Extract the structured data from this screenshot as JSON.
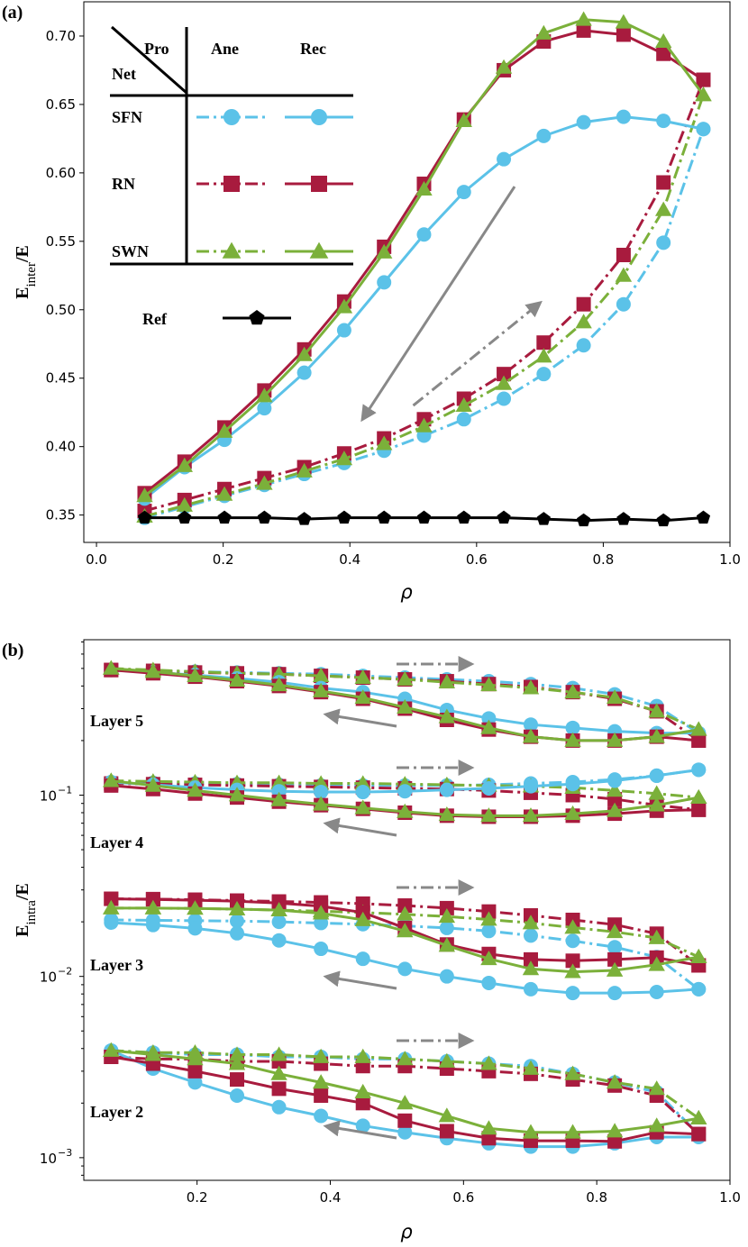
{
  "colors": {
    "SFN": "#5bc2e8",
    "RN": "#a81b3e",
    "SWN": "#7bb03a",
    "Ref": "#000000",
    "arrow": "#888888"
  },
  "chart_data": [
    {
      "type": "line",
      "panel_label": "(a)",
      "xlabel": "ρ",
      "ylabel_main": "E",
      "ylabel_sub": "inter",
      "ylabel_tail": "/E",
      "xlim": [
        -0.02,
        1.0
      ],
      "ylim": [
        0.33,
        0.725
      ],
      "xticks": [
        0.0,
        0.2,
        0.4,
        0.6,
        0.8,
        1.0
      ],
      "xtick_labels": [
        "0.0",
        "0.2",
        "0.4",
        "0.6",
        "0.8",
        "1.0"
      ],
      "yticks": [
        0.35,
        0.4,
        0.45,
        0.5,
        0.55,
        0.6,
        0.65,
        0.7
      ],
      "ytick_labels": [
        "0.35",
        "0.40",
        "0.45",
        "0.50",
        "0.55",
        "0.60",
        "0.65",
        "0.70"
      ],
      "x": [
        0.076,
        0.139,
        0.202,
        0.265,
        0.328,
        0.391,
        0.454,
        0.517,
        0.58,
        0.643,
        0.706,
        0.769,
        0.832,
        0.895,
        0.958
      ],
      "legend": {
        "corner_top": "Pro",
        "corner_left": "Net",
        "col_ane": "Ane",
        "col_rec": "Rec",
        "row_sfn": "SFN",
        "row_rn": "RN",
        "row_swn": "SWN",
        "row_ref": "Ref"
      },
      "series": [
        {
          "net": "SFN",
          "process": "Ane",
          "marker": "circle",
          "values": [
            0.348,
            0.356,
            0.364,
            0.372,
            0.38,
            0.388,
            0.397,
            0.408,
            0.42,
            0.435,
            0.453,
            0.474,
            0.504,
            0.549,
            0.632
          ]
        },
        {
          "net": "RN",
          "process": "Ane",
          "marker": "square",
          "values": [
            0.353,
            0.361,
            0.369,
            0.377,
            0.385,
            0.395,
            0.406,
            0.42,
            0.435,
            0.453,
            0.476,
            0.504,
            0.54,
            0.593,
            0.668
          ]
        },
        {
          "net": "SWN",
          "process": "Ane",
          "marker": "triangle",
          "values": [
            0.349,
            0.357,
            0.365,
            0.373,
            0.382,
            0.391,
            0.402,
            0.415,
            0.43,
            0.446,
            0.466,
            0.491,
            0.525,
            0.573,
            0.657
          ]
        },
        {
          "net": "SFN",
          "process": "Rec",
          "marker": "circle",
          "values": [
            0.362,
            0.385,
            0.405,
            0.428,
            0.454,
            0.485,
            0.52,
            0.555,
            0.586,
            0.61,
            0.627,
            0.637,
            0.641,
            0.638,
            0.632
          ]
        },
        {
          "net": "RN",
          "process": "Rec",
          "marker": "square",
          "values": [
            0.366,
            0.389,
            0.414,
            0.441,
            0.471,
            0.506,
            0.546,
            0.592,
            0.639,
            0.675,
            0.696,
            0.704,
            0.701,
            0.687,
            0.668
          ]
        },
        {
          "net": "SWN",
          "process": "Rec",
          "marker": "triangle",
          "values": [
            0.364,
            0.386,
            0.411,
            0.437,
            0.467,
            0.502,
            0.542,
            0.588,
            0.638,
            0.677,
            0.702,
            0.712,
            0.71,
            0.696,
            0.657
          ]
        },
        {
          "net": "Ref",
          "process": "",
          "marker": "pentagon",
          "values": [
            0.348,
            0.348,
            0.348,
            0.348,
            0.347,
            0.348,
            0.348,
            0.348,
            0.348,
            0.348,
            0.347,
            0.346,
            0.347,
            0.346,
            0.348
          ]
        }
      ],
      "arrows": [
        {
          "style": "solid",
          "from": [
            0.66,
            0.59
          ],
          "to": [
            0.42,
            0.42
          ]
        },
        {
          "style": "dashdot",
          "from": [
            0.5,
            0.43
          ],
          "to": [
            0.7,
            0.505
          ]
        }
      ]
    },
    {
      "type": "line",
      "panel_label": "(b)",
      "xlabel": "ρ",
      "ylabel_main": "E",
      "ylabel_sub": "intra",
      "ylabel_tail": "/E",
      "yscale": "log",
      "xlim": [
        0.03,
        1.0
      ],
      "ylim": [
        0.00075,
        0.72
      ],
      "xticks": [
        0.2,
        0.4,
        0.6,
        0.8,
        1.0
      ],
      "xtick_labels": [
        "0.2",
        "0.4",
        "0.6",
        "0.8",
        "1.0"
      ],
      "ytick_labels": [
        {
          "value": 0.001,
          "base": "10",
          "exp": "−3"
        },
        {
          "value": 0.01,
          "base": "10",
          "exp": "−2"
        },
        {
          "value": 0.1,
          "base": "10",
          "exp": "−1"
        }
      ],
      "x": [
        0.071,
        0.134,
        0.197,
        0.26,
        0.323,
        0.386,
        0.449,
        0.512,
        0.575,
        0.638,
        0.701,
        0.764,
        0.827,
        0.89,
        0.953
      ],
      "layers": [
        {
          "label": "Layer 5",
          "series": [
            {
              "net": "SFN",
              "process": "Ane",
              "values": [
                0.49,
                0.485,
                0.48,
                0.475,
                0.47,
                0.465,
                0.455,
                0.445,
                0.435,
                0.425,
                0.41,
                0.39,
                0.36,
                0.31,
                0.22
              ]
            },
            {
              "net": "RN",
              "process": "Ane",
              "values": [
                0.49,
                0.485,
                0.475,
                0.47,
                0.465,
                0.455,
                0.445,
                0.435,
                0.425,
                0.41,
                0.395,
                0.37,
                0.34,
                0.29,
                0.2
              ]
            },
            {
              "net": "SWN",
              "process": "Ane",
              "values": [
                0.5,
                0.49,
                0.48,
                0.47,
                0.465,
                0.455,
                0.445,
                0.435,
                0.42,
                0.405,
                0.39,
                0.37,
                0.345,
                0.29,
                0.23
              ]
            },
            {
              "net": "SFN",
              "process": "Rec",
              "values": [
                0.49,
                0.475,
                0.46,
                0.44,
                0.42,
                0.39,
                0.37,
                0.34,
                0.295,
                0.265,
                0.245,
                0.235,
                0.225,
                0.22,
                0.22
              ]
            },
            {
              "net": "RN",
              "process": "Rec",
              "values": [
                0.49,
                0.47,
                0.45,
                0.425,
                0.4,
                0.37,
                0.34,
                0.3,
                0.26,
                0.23,
                0.21,
                0.2,
                0.2,
                0.21,
                0.2
              ]
            },
            {
              "net": "SWN",
              "process": "Rec",
              "values": [
                0.5,
                0.48,
                0.455,
                0.43,
                0.405,
                0.375,
                0.345,
                0.305,
                0.27,
                0.235,
                0.21,
                0.2,
                0.2,
                0.21,
                0.23
              ]
            }
          ]
        },
        {
          "label": "Layer 4",
          "series": [
            {
              "net": "SFN",
              "process": "Ane",
              "values": [
                0.118,
                0.117,
                0.116,
                0.115,
                0.114,
                0.113,
                0.113,
                0.113,
                0.113,
                0.114,
                0.116,
                0.118,
                0.122,
                0.128,
                0.138
              ]
            },
            {
              "net": "RN",
              "process": "Ane",
              "values": [
                0.116,
                0.115,
                0.114,
                0.113,
                0.112,
                0.111,
                0.11,
                0.109,
                0.108,
                0.106,
                0.103,
                0.1,
                0.095,
                0.088,
                0.083
              ]
            },
            {
              "net": "SWN",
              "process": "Ane",
              "values": [
                0.12,
                0.119,
                0.118,
                0.117,
                0.117,
                0.116,
                0.116,
                0.115,
                0.114,
                0.113,
                0.112,
                0.11,
                0.106,
                0.102,
                0.097
              ]
            },
            {
              "net": "SFN",
              "process": "Rec",
              "values": [
                0.118,
                0.114,
                0.11,
                0.107,
                0.105,
                0.104,
                0.104,
                0.105,
                0.107,
                0.109,
                0.112,
                0.115,
                0.12,
                0.128,
                0.138
              ]
            },
            {
              "net": "RN",
              "process": "Rec",
              "values": [
                0.113,
                0.108,
                0.102,
                0.097,
                0.092,
                0.088,
                0.084,
                0.08,
                0.077,
                0.076,
                0.076,
                0.077,
                0.079,
                0.082,
                0.083
              ]
            },
            {
              "net": "SWN",
              "process": "Rec",
              "values": [
                0.12,
                0.113,
                0.106,
                0.1,
                0.094,
                0.089,
                0.085,
                0.081,
                0.078,
                0.077,
                0.077,
                0.079,
                0.082,
                0.088,
                0.097
              ]
            }
          ]
        },
        {
          "label": "Layer 3",
          "series": [
            {
              "net": "SFN",
              "process": "Ane",
              "values": [
                0.0205,
                0.0204,
                0.0203,
                0.0202,
                0.02,
                0.0197,
                0.0194,
                0.019,
                0.0185,
                0.0178,
                0.0168,
                0.0157,
                0.0145,
                0.0128,
                0.0085
              ]
            },
            {
              "net": "RN",
              "process": "Ane",
              "values": [
                0.0268,
                0.0267,
                0.0265,
                0.0262,
                0.0259,
                0.0256,
                0.0252,
                0.0246,
                0.0238,
                0.0228,
                0.0217,
                0.0205,
                0.0193,
                0.0172,
                0.0115
              ]
            },
            {
              "net": "SWN",
              "process": "Ane",
              "values": [
                0.0238,
                0.0238,
                0.0237,
                0.0235,
                0.0232,
                0.0229,
                0.0225,
                0.022,
                0.0214,
                0.0206,
                0.0197,
                0.0186,
                0.0176,
                0.0163,
                0.0128
              ]
            },
            {
              "net": "SFN",
              "process": "Rec",
              "values": [
                0.0198,
                0.0192,
                0.0184,
                0.0173,
                0.0158,
                0.0142,
                0.0125,
                0.011,
                0.01,
                0.0092,
                0.0085,
                0.0081,
                0.0081,
                0.0082,
                0.0085
              ]
            },
            {
              "net": "RN",
              "process": "Rec",
              "values": [
                0.0268,
                0.0266,
                0.0263,
                0.026,
                0.0254,
                0.0244,
                0.0225,
                0.0185,
                0.015,
                0.0133,
                0.0124,
                0.0122,
                0.0124,
                0.0127,
                0.0115
              ]
            },
            {
              "net": "SWN",
              "process": "Rec",
              "values": [
                0.0238,
                0.0238,
                0.0237,
                0.0235,
                0.0232,
                0.0223,
                0.0205,
                0.0178,
                0.0148,
                0.0125,
                0.011,
                0.0106,
                0.0108,
                0.0116,
                0.0128
              ]
            }
          ]
        },
        {
          "label": "Layer 2",
          "series": [
            {
              "net": "SFN",
              "process": "Ane",
              "values": [
                0.0039,
                0.0038,
                0.0037,
                0.0037,
                0.0036,
                0.0036,
                0.0035,
                0.0035,
                0.0034,
                0.0033,
                0.0032,
                0.0029,
                0.0026,
                0.0023,
                0.00135
              ]
            },
            {
              "net": "RN",
              "process": "Ane",
              "values": [
                0.0036,
                0.0035,
                0.0035,
                0.0034,
                0.0034,
                0.0033,
                0.0032,
                0.0032,
                0.0031,
                0.003,
                0.0029,
                0.0027,
                0.0025,
                0.0022,
                0.00135
              ]
            },
            {
              "net": "SWN",
              "process": "Ane",
              "values": [
                0.0039,
                0.0038,
                0.0038,
                0.0037,
                0.0037,
                0.0036,
                0.0036,
                0.0035,
                0.0034,
                0.0033,
                0.0031,
                0.0029,
                0.0026,
                0.0024,
                0.00165
              ]
            },
            {
              "net": "SFN",
              "process": "Rec",
              "values": [
                0.0039,
                0.0031,
                0.0026,
                0.0022,
                0.0019,
                0.0017,
                0.0015,
                0.00138,
                0.00128,
                0.0012,
                0.00115,
                0.00115,
                0.0012,
                0.0013,
                0.0013
              ]
            },
            {
              "net": "RN",
              "process": "Rec",
              "values": [
                0.0036,
                0.0033,
                0.003,
                0.0027,
                0.0024,
                0.0022,
                0.002,
                0.0016,
                0.0014,
                0.00128,
                0.00124,
                0.00124,
                0.00123,
                0.00138,
                0.00135
              ]
            },
            {
              "net": "SWN",
              "process": "Rec",
              "values": [
                0.0039,
                0.0037,
                0.0035,
                0.0033,
                0.0029,
                0.0026,
                0.0023,
                0.002,
                0.0017,
                0.00145,
                0.00138,
                0.00138,
                0.0014,
                0.0015,
                0.00165
              ]
            }
          ]
        }
      ]
    }
  ]
}
